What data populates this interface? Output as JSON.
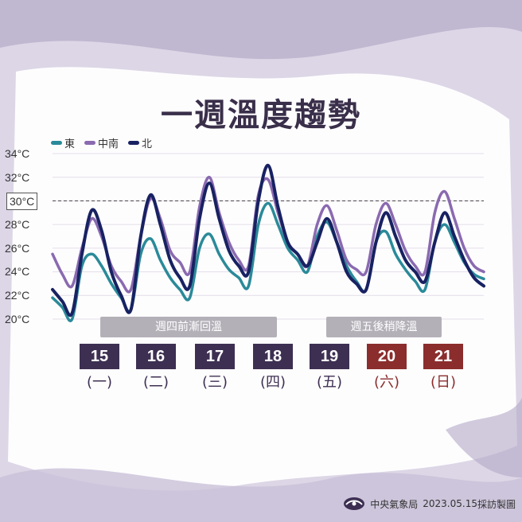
{
  "title": "一週溫度趨勢",
  "legend": [
    {
      "name": "東",
      "color": "#2a8a99"
    },
    {
      "name": "中南",
      "color": "#8a6ab0"
    },
    {
      "name": "北",
      "color": "#182262"
    }
  ],
  "reference_line": {
    "value": 30,
    "label": "30°C"
  },
  "banners": [
    {
      "text": "週四前漸回溫"
    },
    {
      "text": "週五後稍降溫"
    }
  ],
  "days": [
    {
      "date": "15",
      "weekday": "(一)",
      "weekend": false
    },
    {
      "date": "16",
      "weekday": "(二)",
      "weekend": false
    },
    {
      "date": "17",
      "weekday": "(三)",
      "weekend": false
    },
    {
      "date": "18",
      "weekday": "(四)",
      "weekend": false
    },
    {
      "date": "19",
      "weekday": "(五)",
      "weekend": false
    },
    {
      "date": "20",
      "weekday": "(六)",
      "weekend": true
    },
    {
      "date": "21",
      "weekday": "(日)",
      "weekend": true
    }
  ],
  "colors": {
    "weekday_box": "#3d2f52",
    "weekend_box": "#8b2d2d",
    "weekday_text": "#3d2f52",
    "weekend_text": "#8b2d2d"
  },
  "footer": {
    "agency": "中央氣象局",
    "date": "2023.05.15",
    "credit": "採訪製圖"
  },
  "chart_data": {
    "type": "line",
    "y_ticks": [
      "34°C",
      "32°C",
      "30°C",
      "28°C",
      "26°C",
      "24°C",
      "22°C",
      "20°C"
    ],
    "ylim": [
      20,
      34
    ],
    "grid": true,
    "legend_position": "top-left",
    "series": [
      {
        "name": "北",
        "color": "#182262",
        "values": [
          22.5,
          21.5,
          20.5,
          25.5,
          29.2,
          27.5,
          24.0,
          22.0,
          20.8,
          27.0,
          30.5,
          28.0,
          25.0,
          23.5,
          22.8,
          28.5,
          31.5,
          28.5,
          25.8,
          24.5,
          24.0,
          30.0,
          33.0,
          29.5,
          26.5,
          25.5,
          24.5,
          26.5,
          28.5,
          26.5,
          24.0,
          23.0,
          22.5,
          26.5,
          29.0,
          27.0,
          25.0,
          24.0,
          23.2,
          26.5,
          29.0,
          27.0,
          25.0,
          23.5,
          22.8
        ]
      },
      {
        "name": "中南",
        "color": "#8a6ab0",
        "values": [
          25.5,
          23.8,
          22.8,
          26.0,
          28.5,
          27.0,
          24.5,
          23.2,
          22.5,
          27.0,
          30.2,
          28.5,
          25.8,
          24.8,
          24.0,
          29.5,
          32.0,
          29.0,
          26.5,
          25.0,
          24.5,
          30.5,
          31.8,
          29.0,
          26.5,
          25.5,
          24.5,
          28.0,
          29.6,
          27.5,
          25.0,
          24.2,
          24.0,
          28.0,
          29.8,
          28.0,
          25.8,
          24.5,
          24.0,
          29.0,
          30.8,
          28.5,
          26.0,
          24.5,
          24.0
        ]
      },
      {
        "name": "東",
        "color": "#2a8a99",
        "values": [
          21.8,
          21.0,
          20.0,
          24.5,
          25.5,
          24.5,
          23.0,
          21.8,
          20.8,
          25.5,
          26.8,
          25.0,
          23.5,
          22.5,
          21.8,
          26.0,
          27.2,
          25.5,
          24.2,
          23.5,
          22.8,
          28.0,
          29.8,
          28.0,
          26.0,
          25.0,
          24.0,
          27.0,
          28.2,
          26.5,
          24.5,
          23.2,
          22.5,
          26.5,
          27.4,
          25.5,
          24.2,
          23.2,
          22.5,
          26.5,
          28.0,
          26.5,
          24.8,
          23.8,
          23.4
        ]
      }
    ]
  }
}
